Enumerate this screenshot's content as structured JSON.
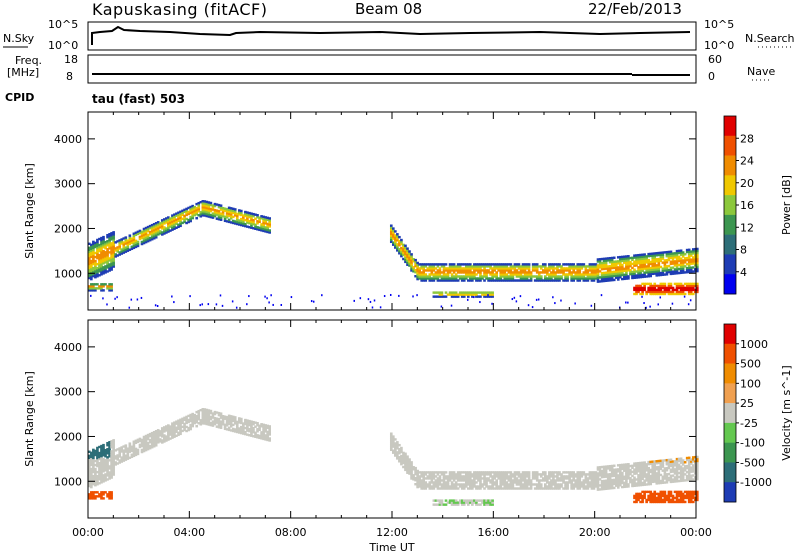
{
  "header": {
    "site": "Kapuskasing (fitACF)",
    "beam": "Beam 08",
    "date": "22/Feb/2013"
  },
  "top_panels": {
    "nsky_label": "N.Sky",
    "nsky_ticks": [
      "10^5",
      "10^0"
    ],
    "nsearch_label": "N.Search",
    "nsearch_ticks": [
      "10^5",
      "10^0"
    ],
    "freq_label_1": "Freq.",
    "freq_label_2": "[MHz]",
    "freq_ticks": [
      "18",
      "8"
    ],
    "nave_label": "Nave",
    "nave_ticks": [
      "60",
      "0"
    ],
    "cpid_label": "CPID",
    "cpid_text": "tau (fast) 503"
  },
  "chart_data": [
    {
      "type": "heatmap",
      "name": "power",
      "ylabel": "Slant Range [km]",
      "xlabel": "",
      "x_ticks": [
        "00:00",
        "04:00",
        "08:00",
        "12:00",
        "16:00",
        "20:00",
        "00:00"
      ],
      "x_range_hours": [
        0,
        24
      ],
      "y_ticks": [
        1000,
        2000,
        3000,
        4000
      ],
      "y_range_km": [
        180,
        4600
      ],
      "colorbar_label": "Power [dB]",
      "colorbar_ticks": [
        "4",
        "8",
        "12",
        "16",
        "20",
        "24",
        "28"
      ],
      "colors": [
        "#0000f0",
        "#1e3cb4",
        "#2d6e78",
        "#3c9650",
        "#8cc83c",
        "#f0c800",
        "#f08c00",
        "#f05000",
        "#e00000"
      ],
      "band_colors": [
        "#f08c00",
        "#f0c800",
        "#8cc83c",
        "#3c9650",
        "#1e3cb4"
      ],
      "features": [
        {
          "label": "morning echo band",
          "t_start": 0.0,
          "t_end": 7.0,
          "range_start_km": 1200,
          "range_peak_km": 2500,
          "peak_hour": 4.5,
          "range_end_km": 2100
        },
        {
          "label": "afternoon echo band",
          "t_start": 12.0,
          "t_end": 24.0,
          "range_km": 1000
        },
        {
          "label": "near-range echoes",
          "t_start": 13.5,
          "t_end": 16.0,
          "range_km": 550
        },
        {
          "label": "late near-range echoes",
          "t_start": 21.5,
          "t_end": 24.0,
          "range_km": 650
        }
      ]
    },
    {
      "type": "heatmap",
      "name": "velocity",
      "ylabel": "Slant Range [km]",
      "xlabel": "Time UT",
      "x_ticks": [
        "00:00",
        "04:00",
        "08:00",
        "12:00",
        "16:00",
        "20:00",
        "00:00"
      ],
      "x_range_hours": [
        0,
        24
      ],
      "y_ticks": [
        1000,
        2000,
        3000,
        4000
      ],
      "y_range_km": [
        180,
        4600
      ],
      "colorbar_label": "Velocity [m s^-1]",
      "colorbar_ticks": [
        "1000",
        "500",
        "100",
        "25",
        "-25",
        "-100",
        "-500",
        "-1000"
      ],
      "colors": [
        "#1e3cb4",
        "#2d6e78",
        "#3c9650",
        "#64c850",
        "#c8c8c0",
        "#f0a050",
        "#f08c00",
        "#f05000",
        "#e00000"
      ],
      "ground_scatter_color": "#c8c8c0"
    }
  ]
}
